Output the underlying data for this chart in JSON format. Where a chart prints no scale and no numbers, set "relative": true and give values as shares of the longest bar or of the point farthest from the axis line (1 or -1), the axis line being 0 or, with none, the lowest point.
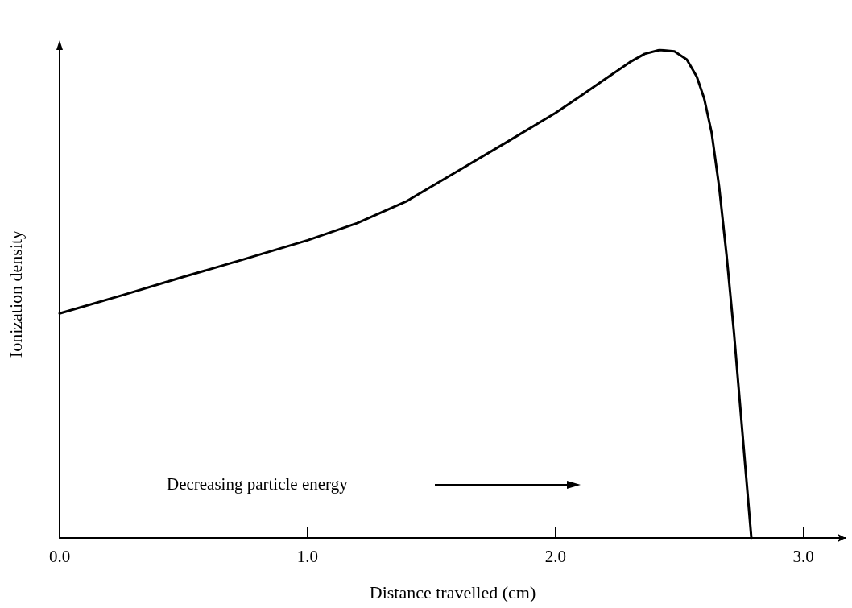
{
  "chart_data": {
    "type": "line",
    "relative": true,
    "xlabel": "Distance travelled (cm)",
    "ylabel": "Ionization density",
    "xlim": [
      0,
      3.17
    ],
    "xticks": [
      {
        "value": 0,
        "label": "0.0"
      },
      {
        "value": 1,
        "label": "1.0"
      },
      {
        "value": 2,
        "label": "2.0"
      },
      {
        "value": 3,
        "label": "3.0"
      }
    ],
    "series": [
      {
        "color": "#000000",
        "x": [
          0,
          0.25,
          0.5,
          0.75,
          1.0,
          1.2,
          1.4,
          1.6,
          1.8,
          2.0,
          2.1,
          2.2,
          2.3,
          2.36,
          2.42,
          2.48,
          2.53,
          2.57,
          2.6,
          2.63,
          2.66,
          2.69,
          2.72,
          2.75,
          2.77,
          2.79
        ],
        "values": [
          0.46,
          0.497,
          0.535,
          0.572,
          0.61,
          0.645,
          0.69,
          0.75,
          0.81,
          0.871,
          0.905,
          0.94,
          0.975,
          0.992,
          1,
          0.997,
          0.98,
          0.945,
          0.9,
          0.83,
          0.72,
          0.58,
          0.42,
          0.24,
          0.12,
          0
        ]
      }
    ],
    "annotations": [
      "Decreasing particle energy"
    ],
    "grid": false,
    "marker": "none",
    "line_style": "solid"
  }
}
